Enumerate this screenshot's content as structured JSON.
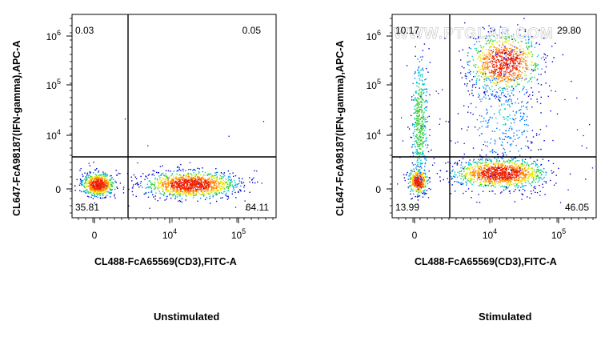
{
  "watermark": "WWW.PTGLAB.COM",
  "colors": {
    "axis": "#000000",
    "gate": "#000000",
    "dots": [
      "#0000cc",
      "#0077ff",
      "#00c8c8",
      "#33cc33",
      "#e8e800",
      "#ff8800",
      "#ee2200"
    ]
  },
  "chart_data": [
    {
      "type": "scatter",
      "title": "",
      "caption": "Unstimulated",
      "xlabel": "CL488-FcA65569(CD3),FITC-A",
      "ylabel": "CL647-FcA98187(IFN-gamma),APC-A",
      "x_ticks": [
        {
          "base": "0",
          "exp": ""
        },
        {
          "base": "10",
          "exp": "4"
        },
        {
          "base": "10",
          "exp": "5"
        }
      ],
      "y_ticks": [
        {
          "base": "0",
          "exp": ""
        },
        {
          "base": "10",
          "exp": "4"
        },
        {
          "base": "10",
          "exp": "5"
        },
        {
          "base": "10",
          "exp": "6"
        }
      ],
      "scale": "biexponential",
      "quadrants": {
        "upper_left": "0.03",
        "upper_right": "0.05",
        "lower_left": "35.81",
        "lower_right": "64.11"
      },
      "populations": [
        {
          "name": "CD3- IFN-gamma-",
          "x_center": 0,
          "y_center": 0,
          "percent": 35.81
        },
        {
          "name": "CD3+ IFN-gamma-",
          "x_center": 20000,
          "y_center": 0,
          "percent": 64.11
        }
      ]
    },
    {
      "type": "scatter",
      "title": "",
      "caption": "Stimulated",
      "xlabel": "CL488-FcA65569(CD3),FITC-A",
      "ylabel": "CL647-FcA98187(IFN-gamma),APC-A",
      "x_ticks": [
        {
          "base": "0",
          "exp": ""
        },
        {
          "base": "10",
          "exp": "4"
        },
        {
          "base": "10",
          "exp": "5"
        }
      ],
      "y_ticks": [
        {
          "base": "0",
          "exp": ""
        },
        {
          "base": "10",
          "exp": "4"
        },
        {
          "base": "10",
          "exp": "5"
        },
        {
          "base": "10",
          "exp": "6"
        }
      ],
      "scale": "biexponential",
      "quadrants": {
        "upper_left": "10.17",
        "upper_right": "29.80",
        "lower_left": "13.99",
        "lower_right": "46.05"
      },
      "populations": [
        {
          "name": "CD3- IFN-gamma+",
          "x_center": 0,
          "y_center": 150000,
          "percent": 10.17
        },
        {
          "name": "CD3+ IFN-gamma+",
          "x_center": 15000,
          "y_center": 400000,
          "percent": 29.8
        },
        {
          "name": "CD3- IFN-gamma-",
          "x_center": 0,
          "y_center": 0,
          "percent": 13.99
        },
        {
          "name": "CD3+ IFN-gamma-",
          "x_center": 15000,
          "y_center": 0,
          "percent": 46.05
        }
      ]
    }
  ]
}
